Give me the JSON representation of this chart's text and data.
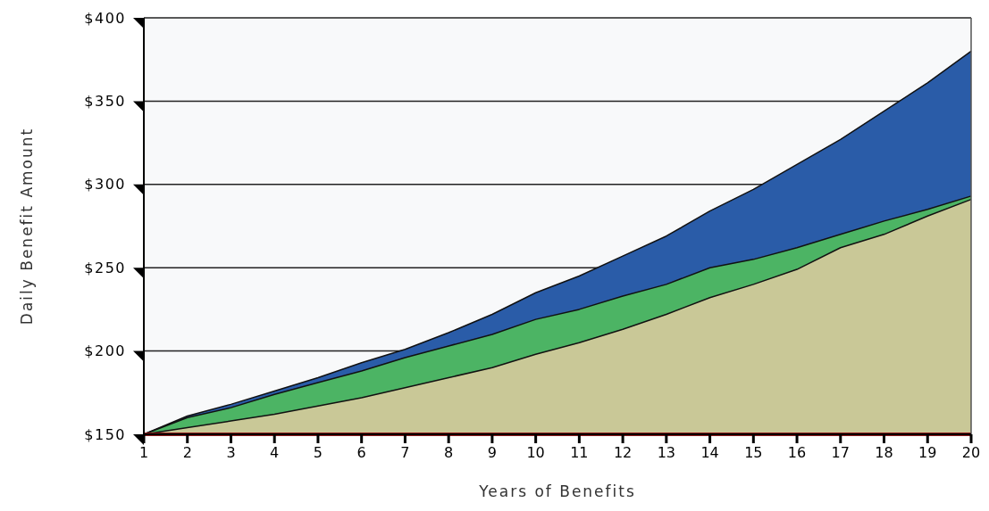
{
  "chart_data": {
    "type": "area",
    "xlabel": "Years of Benefits",
    "ylabel": "Daily Benefit Amount",
    "x": [
      1,
      2,
      3,
      4,
      5,
      6,
      7,
      8,
      9,
      10,
      11,
      12,
      13,
      14,
      15,
      16,
      17,
      18,
      19,
      20
    ],
    "series": [
      {
        "color": "#2a5ca8",
        "values": [
          150,
          161,
          168,
          176,
          184,
          193,
          201,
          211,
          222,
          235,
          245,
          257,
          269,
          284,
          297,
          312,
          327,
          344,
          361,
          380
        ]
      },
      {
        "color": "#4cb464",
        "values": [
          150,
          160,
          166,
          174,
          181,
          188,
          196,
          203,
          210,
          219,
          225,
          233,
          240,
          250,
          255,
          262,
          270,
          278,
          285,
          293
        ]
      },
      {
        "color": "#c9c897",
        "values": [
          150,
          154,
          158,
          162,
          167,
          172,
          178,
          184,
          190,
          198,
          205,
          213,
          222,
          232,
          240,
          249,
          262,
          270,
          281,
          291
        ]
      },
      {
        "type": "line",
        "color": "#8b1a1a",
        "values": [
          150,
          150,
          150,
          150,
          150,
          150,
          150,
          150,
          150,
          150,
          150,
          150,
          150,
          150,
          150,
          150,
          150,
          150,
          150,
          150
        ]
      }
    ],
    "xlim": [
      1,
      20
    ],
    "xticks": [
      1,
      2,
      3,
      4,
      5,
      6,
      7,
      8,
      9,
      10,
      11,
      12,
      13,
      14,
      15,
      16,
      17,
      18,
      19,
      20
    ],
    "ylim": [
      150,
      400
    ],
    "yticks": [
      {
        "value": 150,
        "label": "$150"
      },
      {
        "value": 200,
        "label": "$200"
      },
      {
        "value": 250,
        "label": "$250"
      },
      {
        "value": 300,
        "label": "$300"
      },
      {
        "value": 350,
        "label": "$350"
      },
      {
        "value": 400,
        "label": "$400"
      }
    ],
    "grid": "y"
  }
}
